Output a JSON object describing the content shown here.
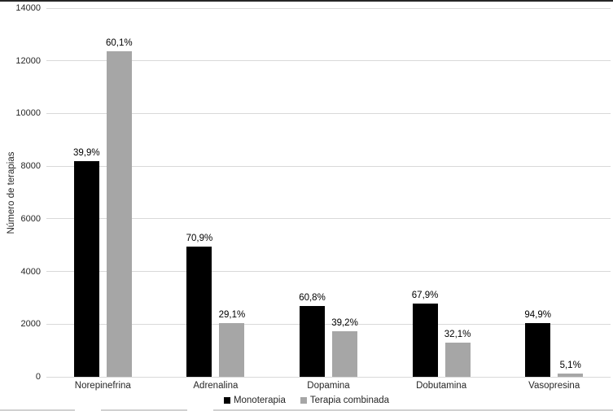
{
  "figure": {
    "background": "#ffffff",
    "top_border_color": "#262626",
    "bottom_border_color": "#d0d0d0",
    "gridline_color": "#d9d9d9",
    "bottom_border_segments": [
      [
        0,
        92
      ],
      [
        124,
        230
      ],
      [
        262,
        753
      ]
    ]
  },
  "chart_data": {
    "type": "bar",
    "title": "",
    "xlabel": "",
    "ylabel": "Número de terapias",
    "ylim": [
      0,
      14000
    ],
    "ytick_step": 2000,
    "yticks": [
      0,
      2000,
      4000,
      6000,
      8000,
      10000,
      12000,
      14000
    ],
    "grid": true,
    "legend_position": "bottom",
    "categories": [
      "Norepinefrina",
      "Adrenalina",
      "Dopamina",
      "Dobutamina",
      "Vasopresina"
    ],
    "series": [
      {
        "name": "Monoterapia",
        "color": "#000000",
        "values": [
          8200,
          4960,
          2680,
          2770,
          2030
        ],
        "labels": [
          "39,9%",
          "70,9%",
          "60,8%",
          "67,9%",
          "94,9%"
        ]
      },
      {
        "name": "Terapia combinada",
        "color": "#a6a6a6",
        "values": [
          12350,
          2040,
          1730,
          1310,
          110
        ],
        "labels": [
          "60,1%",
          "29,1%",
          "39,2%",
          "32,1%",
          "5,1%"
        ]
      }
    ]
  }
}
